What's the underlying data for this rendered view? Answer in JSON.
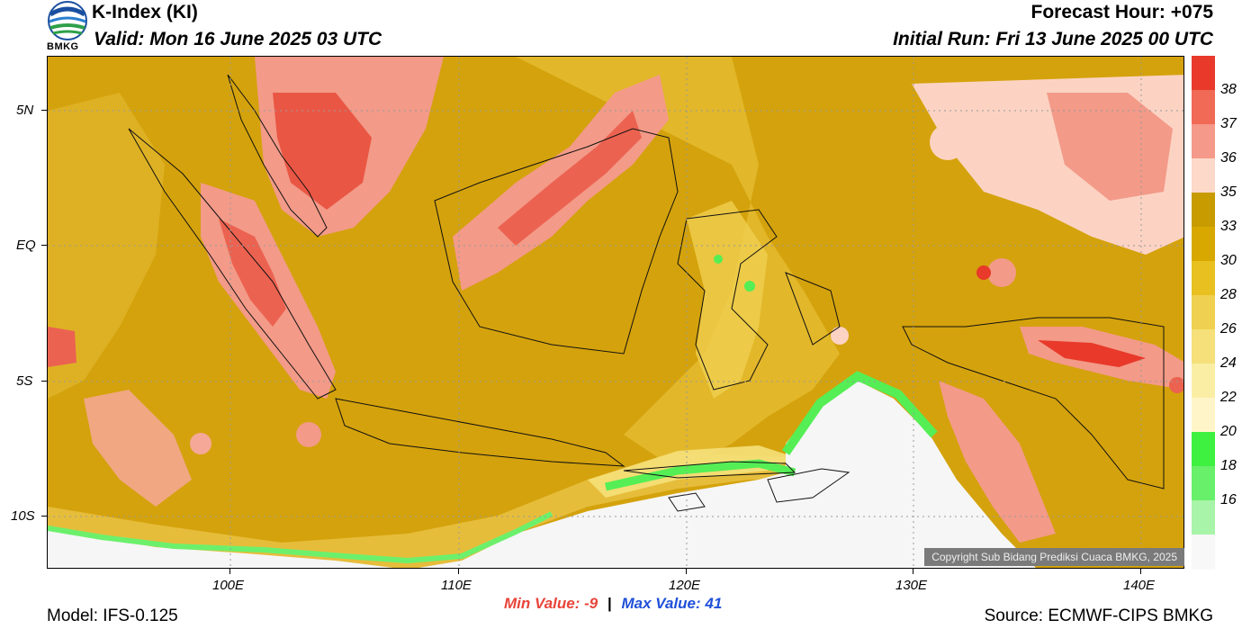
{
  "header": {
    "title": "K-Index (KI)",
    "valid": "Valid: Mon 16 June 2025 03 UTC",
    "forecast_hour": "Forecast Hour: +075",
    "initial_run": "Initial Run: Fri 13 June 2025 00 UTC",
    "logo_text": "BMKG"
  },
  "axes": {
    "lat_labels": [
      "5N",
      "EQ",
      "5S",
      "10S"
    ],
    "lon_labels": [
      "100E",
      "110E",
      "120E",
      "130E",
      "140E"
    ]
  },
  "stats": {
    "min_label": "Min Value:",
    "min_value": "-9",
    "separator": "|",
    "max_label": "Max Value:",
    "max_value": "41"
  },
  "footer": {
    "model": "Model: IFS-0.125",
    "source": "Source: ECMWF-CIPS BMKG",
    "copyright": "Copyright Sub Bidang Prediksi Cuaca BMKG, 2025"
  },
  "colorbar": {
    "labels": [
      "38",
      "37",
      "36",
      "35",
      "33",
      "30",
      "28",
      "26",
      "24",
      "22",
      "20",
      "18",
      "16"
    ],
    "colors": [
      "#e8392a",
      "#f06a55",
      "#f5998a",
      "#fcd9c9",
      "#c89b00",
      "#d8a800",
      "#e8c020",
      "#f0d050",
      "#f5e07a",
      "#faeea5",
      "#fff5c8",
      "#3ef040",
      "#68f06a",
      "#a8f4a8",
      "#f8f8f8"
    ]
  },
  "colors": {
    "base_fill": "#d4a20c",
    "light_fill": "#e8c040",
    "white_fill": "#f6f6f6",
    "green_fill": "#58ef58"
  }
}
